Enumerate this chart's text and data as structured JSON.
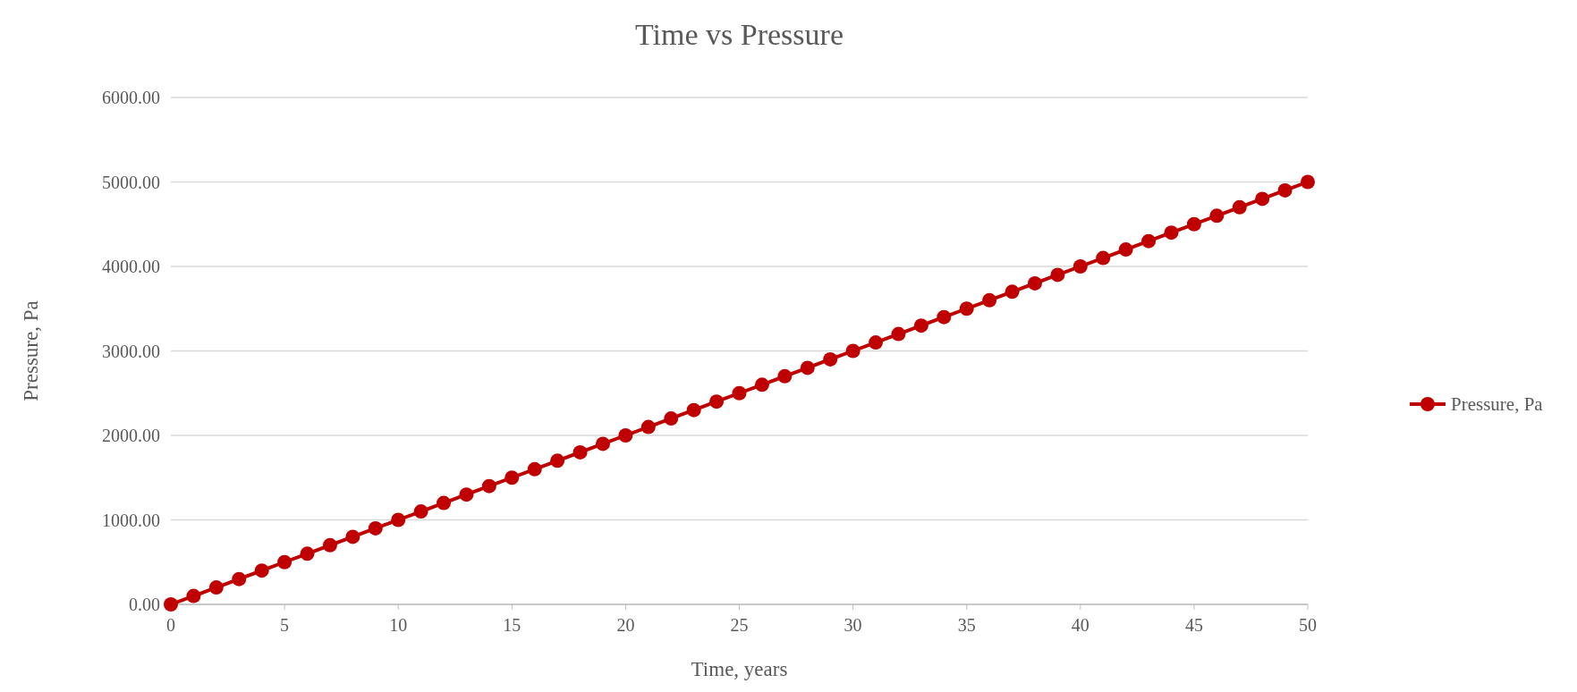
{
  "chart_data": {
    "type": "line",
    "title": "Time vs Pressure",
    "xlabel": "Time, years",
    "ylabel": "Pressure, Pa",
    "x": [
      0,
      1,
      2,
      3,
      4,
      5,
      6,
      7,
      8,
      9,
      10,
      11,
      12,
      13,
      14,
      15,
      16,
      17,
      18,
      19,
      20,
      21,
      22,
      23,
      24,
      25,
      26,
      27,
      28,
      29,
      30,
      31,
      32,
      33,
      34,
      35,
      36,
      37,
      38,
      39,
      40,
      41,
      42,
      43,
      44,
      45,
      46,
      47,
      48,
      49,
      50
    ],
    "series": [
      {
        "name": "Pressure, Pa",
        "color": "#c00000",
        "values": [
          0,
          100,
          200,
          300,
          400,
          500,
          600,
          700,
          800,
          900,
          1000,
          1100,
          1200,
          1300,
          1400,
          1500,
          1600,
          1700,
          1800,
          1900,
          2000,
          2100,
          2200,
          2300,
          2400,
          2500,
          2600,
          2700,
          2800,
          2900,
          3000,
          3100,
          3200,
          3300,
          3400,
          3500,
          3600,
          3700,
          3800,
          3900,
          4000,
          4100,
          4200,
          4300,
          4400,
          4500,
          4600,
          4700,
          4800,
          4900,
          5000
        ]
      }
    ],
    "xlim": [
      0,
      50
    ],
    "xticks": [
      0,
      5,
      10,
      15,
      20,
      25,
      30,
      35,
      40,
      45,
      50
    ],
    "ylim": [
      0,
      6000
    ],
    "yticks": [
      {
        "value": 0,
        "label": "0.00"
      },
      {
        "value": 1000,
        "label": "1000.00"
      },
      {
        "value": 2000,
        "label": "2000.00"
      },
      {
        "value": 3000,
        "label": "3000.00"
      },
      {
        "value": 4000,
        "label": "4000.00"
      },
      {
        "value": 5000,
        "label": "5000.00"
      },
      {
        "value": 6000,
        "label": "6000.00"
      }
    ],
    "grid": "y",
    "legend": "right",
    "marker": "circle",
    "line_style": "solid"
  }
}
